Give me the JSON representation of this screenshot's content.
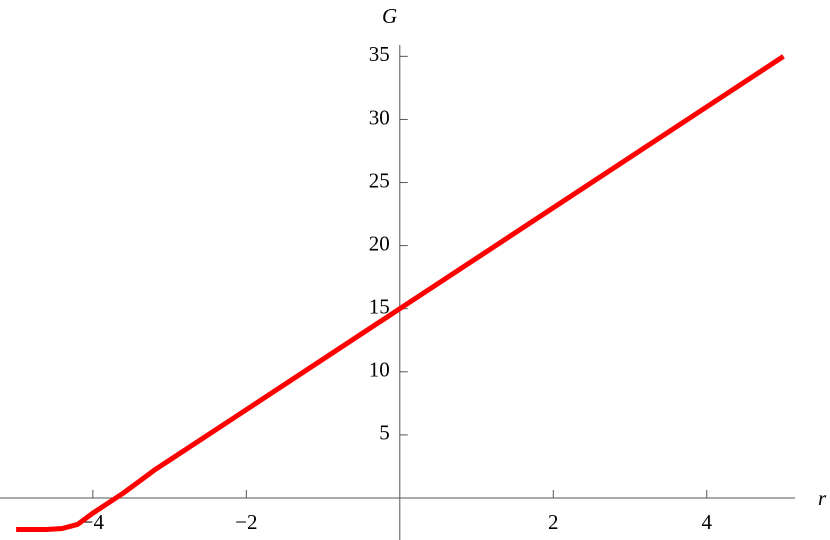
{
  "chart_data": {
    "type": "line",
    "xlabel": "r",
    "ylabel": "G",
    "x": [
      -5,
      -4.6,
      -4.4,
      -4.2,
      -4.0,
      -3.8,
      -3.6,
      -3.4,
      -3.2,
      -3,
      -2,
      0,
      2,
      4,
      5
    ],
    "series": [
      {
        "color": "#ff0000",
        "values": [
          -2.5,
          -2.5,
          -2.42,
          -2.1,
          -1.2,
          -0.4,
          0.4,
          1.3,
          2.2,
          3,
          7,
          15,
          23,
          31,
          35
        ]
      }
    ],
    "xlim": [
      -5.21,
      5.15
    ],
    "ylim": [
      -3.33,
      35.9
    ],
    "xticks": [
      {
        "value": -4,
        "label": "−4"
      },
      {
        "value": -2,
        "label": "−2"
      },
      2,
      4
    ],
    "yticks": [
      5,
      10,
      15,
      20,
      25,
      30,
      35
    ]
  }
}
